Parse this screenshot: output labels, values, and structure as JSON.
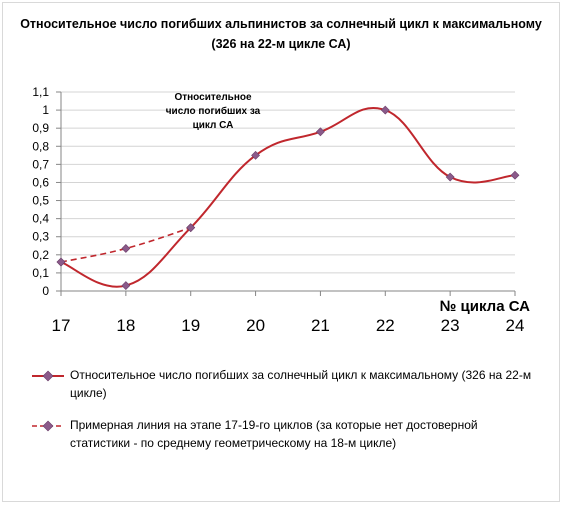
{
  "chart_data": {
    "type": "line",
    "title": "Относительное число погибших альпинистов за солнечный цикл к максимальному (326 на 22-м цикле СА)",
    "annotation": "Относительное число погибших за цикл СА",
    "xlabel": "№ цикла СА",
    "x": [
      17,
      18,
      19,
      20,
      21,
      22,
      23,
      24
    ],
    "ylim": [
      0,
      1.1
    ],
    "yticks": [
      "0",
      "0,1",
      "0,2",
      "0,3",
      "0,4",
      "0,5",
      "0,6",
      "0,7",
      "0,8",
      "0,9",
      "1",
      "1,1"
    ],
    "grid": true,
    "legend_position": "bottom",
    "series": [
      {
        "name": "Относительное число погибших за солнечный цикл к максимальному (326 на 22-м цикле)",
        "x": [
          17,
          18,
          19,
          20,
          21,
          22,
          23,
          24
        ],
        "values": [
          0.16,
          0.03,
          0.35,
          0.75,
          0.88,
          1.0,
          0.63,
          0.64
        ],
        "color": "#c0272d",
        "style": "solid",
        "marker": "diamond"
      },
      {
        "name": "Примерная линия на этапе 17-19-го циклов (за которые нет достоверной статистики - по среднему геометрическому на 18-м цикле)",
        "x": [
          17,
          18,
          19
        ],
        "values": [
          0.16,
          0.235,
          0.35
        ],
        "color": "#c0272d",
        "style": "dashed",
        "marker": "diamond"
      }
    ]
  },
  "marker_color": "#8b5a8a"
}
